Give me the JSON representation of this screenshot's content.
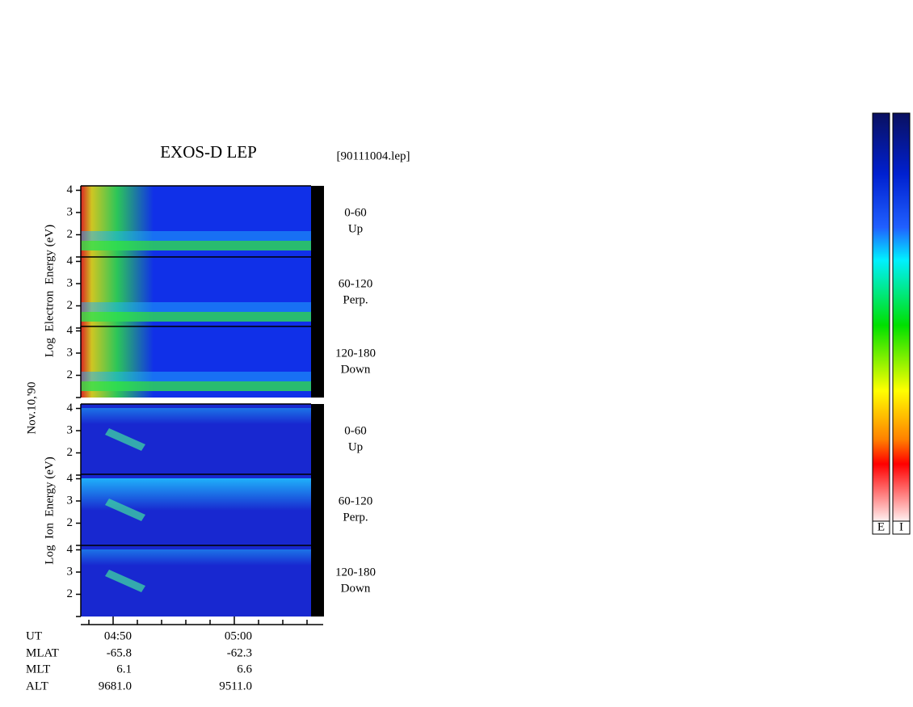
{
  "title": "EXOS-D LEP",
  "file": "[90111004.lep]",
  "electron_label": "Log  Electron  Energy (eV)",
  "date": "Nov.10,'90",
  "ion_label": "Log  Ion  Energy (eV)",
  "ylim": [
    1,
    4.2
  ],
  "yticks": [
    2,
    3,
    4
  ],
  "panels": [
    {
      "angle": "0-60",
      "direction": "Up"
    },
    {
      "angle": "60-120",
      "direction": "Perp."
    },
    {
      "angle": "120-180",
      "direction": "Down"
    },
    {
      "angle": "0-60",
      "direction": "Up"
    },
    {
      "angle": "60-120",
      "direction": "Perp."
    },
    {
      "angle": "120-180",
      "direction": "Down"
    }
  ],
  "orbit": {
    "rows": [
      [
        "UT",
        "04:50",
        "05:00"
      ],
      [
        "MLAT",
        "-65.8",
        "-62.3"
      ],
      [
        "MLT",
        "6.1",
        "6.6"
      ],
      [
        "ALT",
        "9681.0",
        "9511.0"
      ]
    ]
  },
  "colorbars": [
    "E",
    "I"
  ]
}
